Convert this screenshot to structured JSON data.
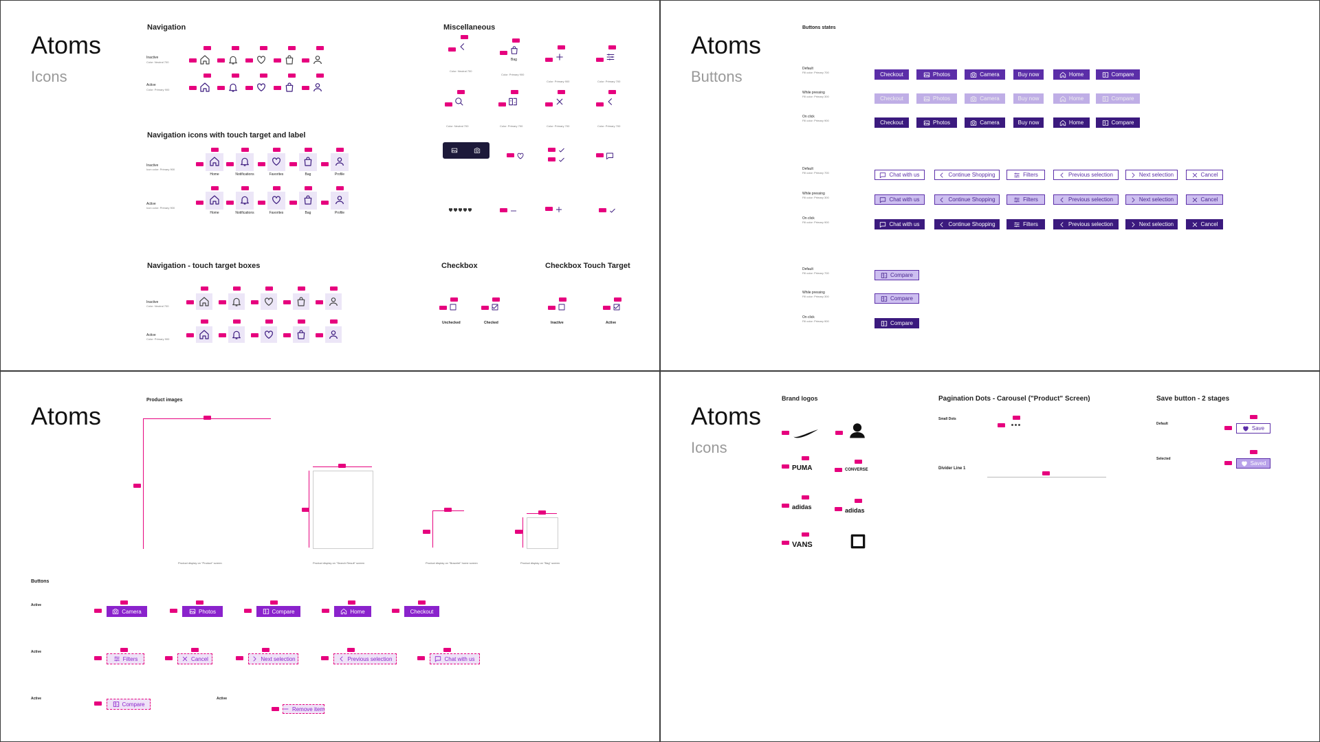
{
  "panels": [
    {
      "title": "Atoms",
      "subtitle": "Icons",
      "navigation": {
        "heading": "Navigation",
        "rows": [
          {
            "label": "Inactive",
            "note": "Color: Neutral 700"
          },
          {
            "label": "Active",
            "note": "Color: Primary 900"
          }
        ]
      },
      "nav_touch": {
        "heading": "Navigation icons with touch target and label",
        "rows": [
          {
            "label": "Inactive",
            "note": "Icon color: Primary 900"
          },
          {
            "label": "Active",
            "note": "Icon color: Primary 900"
          }
        ],
        "labels": [
          "Home",
          "Notifications",
          "Favorites",
          "Bag",
          "Profile"
        ]
      },
      "nav_boxes": {
        "heading": "Navigation - touch target boxes",
        "rows": [
          {
            "label": "Inactive",
            "note": "Color: Neutral 700"
          },
          {
            "label": "Active",
            "note": "Color: Primary 900"
          }
        ]
      },
      "misc": {
        "heading": "Miscellaneous",
        "notes": [
          "Color: Neutral 700",
          "Color: Primary 900",
          "Color: Primary 900",
          "Color: Primary 700",
          "Color: Neutral 700",
          "Color: Primary 700",
          "Color: Primary 700",
          "Color: Primary 700"
        ],
        "bag_label": "Bag"
      },
      "checkbox": {
        "heading": "Checkbox",
        "items": [
          "Unchecked",
          "Checked"
        ]
      },
      "checkbox_touch": {
        "heading": "Checkbox Touch Target",
        "items": [
          "Inactive",
          "Active"
        ]
      }
    },
    {
      "title": "Atoms",
      "subtitle": "Buttons",
      "heading": "Buttons states",
      "states": [
        {
          "label": "Default",
          "note": "Fill color: Primary 700"
        },
        {
          "label": "While pressing",
          "note": "Fill color: Primary 300"
        },
        {
          "label": "On click",
          "note": "Fill color: Primary 900"
        }
      ],
      "group1": [
        "Checkout",
        "Photos",
        "Camera",
        "Buy now",
        "Home",
        "Compare"
      ],
      "group2": [
        "Chat with us",
        "Continue Shopping",
        "Filters",
        "Previous selection",
        "Next selection",
        "Cancel"
      ],
      "group3": [
        "Compare"
      ]
    },
    {
      "title": "Atoms",
      "product_heading": "Product images",
      "product_captions": [
        "Product display on \"Product\" screen",
        "Product display on \"Search Result\" screen",
        "Product display on \"Bracelet\" home screen",
        "Product display on \"Bag\" screen"
      ],
      "buttons_heading": "Buttons",
      "row_label": "Active",
      "row1": [
        "Camera",
        "Photos",
        "Compare",
        "Home",
        "Checkout"
      ],
      "row2": [
        "Filters",
        "Cancel",
        "Next selection",
        "Previous selection",
        "Chat with us"
      ],
      "row3": [
        "Compare",
        "Remove item"
      ]
    },
    {
      "title": "Atoms",
      "subtitle": "Icons",
      "brand_heading": "Brand logos",
      "brands": [
        "PUMA",
        "CONVERSE",
        "adidas",
        "adidas",
        "VANS"
      ],
      "pagination_heading": "Pagination Dots - Carousel (\"Product\" Screen)",
      "pagination_label": "Small Dots",
      "divider": "Divider Line 1",
      "save_heading": "Save button - 2 stages",
      "save_states": [
        "Default",
        "Selected"
      ],
      "save": [
        "Save",
        "Saved"
      ]
    }
  ]
}
